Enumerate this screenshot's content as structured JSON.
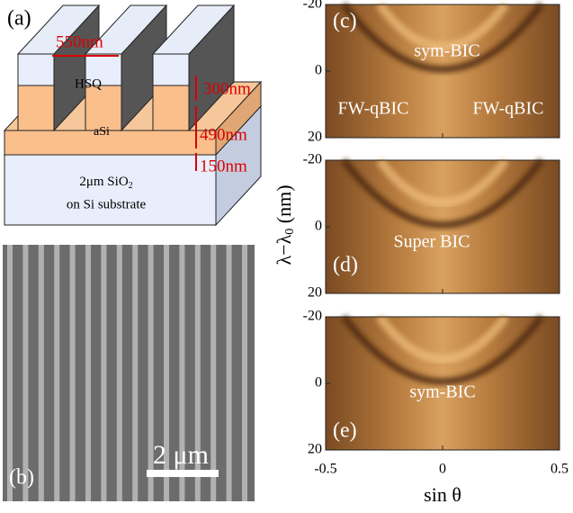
{
  "panel_a": {
    "label": "(a)",
    "width_label": "550nm",
    "layer_labels": [
      "300nm",
      "490nm",
      "150nm"
    ],
    "materials": [
      "HSQ",
      "aSi"
    ],
    "substrate": [
      "2μm SiO",
      "2",
      "on Si substrate"
    ]
  },
  "panel_b": {
    "label": "(b)",
    "scale_bar": "2 μm"
  },
  "spectra": [
    {
      "label": "(c)",
      "annotations": [
        "sym-BIC",
        "FW-qBIC",
        "FW-qBIC"
      ]
    },
    {
      "label": "(d)",
      "annotations": [
        "Super BIC"
      ]
    },
    {
      "label": "(e)",
      "annotations": [
        "sym-BIC"
      ]
    }
  ],
  "y_axis": {
    "label": "λ−λ",
    "label_sub": "0",
    "label_unit": " (nm)",
    "ticks": [
      -20,
      0,
      20
    ]
  },
  "x_axis": {
    "label": "sin θ",
    "ticks": [
      -0.5,
      0,
      0.5
    ]
  }
}
